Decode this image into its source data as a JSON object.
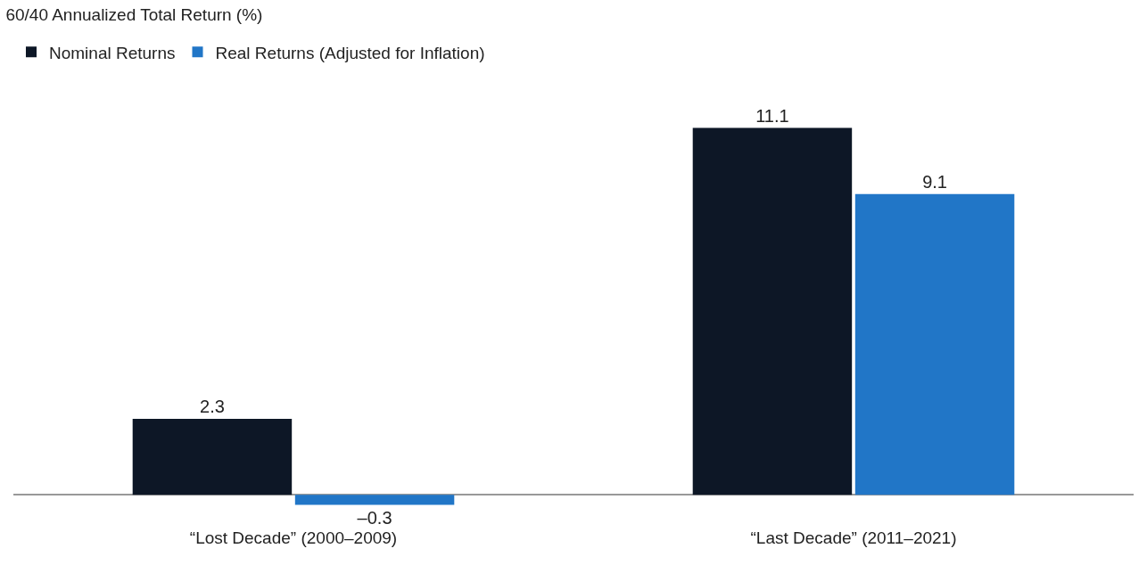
{
  "chart_data": {
    "type": "bar",
    "title": "60/40 Annualized Total Return (%)",
    "categories": [
      "“Lost Decade” (2000–2009)",
      "“Last Decade” (2011–2021)"
    ],
    "series": [
      {
        "name": "Nominal Returns",
        "color": "#0d1726",
        "values": [
          2.3,
          11.1
        ],
        "value_labels": [
          "2.3",
          "11.1"
        ]
      },
      {
        "name": "Real Returns (Adjusted for Inflation)",
        "color": "#2176c7",
        "values": [
          -0.3,
          9.1
        ],
        "value_labels": [
          "–0.3",
          "9.1"
        ]
      }
    ],
    "tick_labels": "x",
    "grid": false,
    "legend": "top left"
  }
}
